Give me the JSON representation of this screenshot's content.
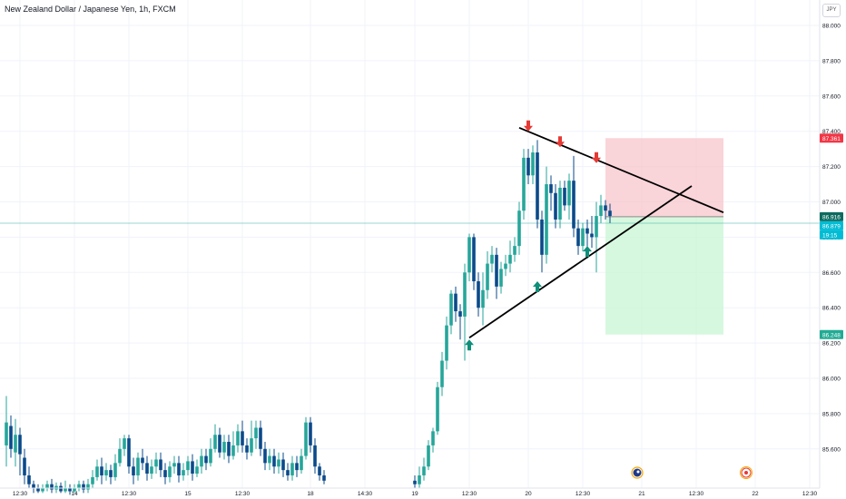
{
  "header": {
    "title": "New Zealand Dollar / Japanese Yen, 1h, FXCM",
    "currency_button": "JPY"
  },
  "colors": {
    "up": "#26a69a",
    "down": "#0b4a8a",
    "grid": "#f0f3fa",
    "current_line": "#26a69a",
    "stop_zone": "#f7c5cb",
    "target_zone": "#c8f5d4",
    "stop_tag": "#f23645",
    "current_tag": "#0e6b5f",
    "bid_tag": "#00bcd4",
    "target_tag": "#22ab94",
    "arrow_down": "#e53935",
    "arrow_up": "#0e8f7a",
    "trendline": "#000000"
  },
  "chart_data": {
    "type": "candlestick",
    "title": "New Zealand Dollar / Japanese Yen, 1h, FXCM",
    "price_axis": {
      "ylim": [
        85.4,
        88.1
      ],
      "ticks": [
        88.0,
        87.8,
        87.6,
        87.4,
        87.2,
        87.0,
        86.8,
        86.6,
        86.4,
        86.2,
        86.0,
        85.8,
        85.6
      ],
      "tick_labels": [
        "88.000",
        "87.800",
        "87.600",
        "87.400",
        "87.200",
        "87.000",
        "86.800",
        "86.600",
        "86.400",
        "86.200",
        "86.000",
        "85.800",
        "85.600"
      ]
    },
    "time_axis": {
      "labels": [
        {
          "text": "12:30",
          "slot": 3
        },
        {
          "text": "14",
          "slot": 15
        },
        {
          "text": "12:30",
          "slot": 27
        },
        {
          "text": "15",
          "slot": 40
        },
        {
          "text": "12:30",
          "slot": 52
        },
        {
          "text": "18",
          "slot": 67
        },
        {
          "text": "14:30",
          "slot": 79
        },
        {
          "text": "19",
          "slot": 90
        },
        {
          "text": "12:30",
          "slot": 102
        },
        {
          "text": "20",
          "slot": 115
        },
        {
          "text": "12:30",
          "slot": 127
        },
        {
          "text": "21",
          "slot": 140
        },
        {
          "text": "12:30",
          "slot": 152
        },
        {
          "text": "22",
          "slot": 165
        },
        {
          "text": "12:30",
          "slot": 177
        }
      ]
    },
    "candles": [
      [
        85.62,
        85.75,
        85.9,
        85.5
      ],
      [
        85.73,
        85.6,
        85.79,
        85.55
      ],
      [
        85.58,
        85.68,
        85.77,
        85.5
      ],
      [
        85.68,
        85.57,
        85.72,
        85.45
      ],
      [
        85.55,
        85.45,
        85.6,
        85.4
      ],
      [
        85.45,
        85.4,
        85.5,
        85.38
      ],
      [
        85.4,
        85.38,
        85.42,
        85.35
      ],
      [
        85.38,
        85.36,
        85.4,
        85.35
      ],
      [
        85.36,
        85.38,
        85.4,
        85.35
      ],
      [
        85.38,
        85.4,
        85.42,
        85.36
      ],
      [
        85.4,
        85.37,
        85.43,
        85.35
      ],
      [
        85.37,
        85.39,
        85.41,
        85.35
      ],
      [
        85.39,
        85.36,
        85.41,
        85.35
      ],
      [
        85.36,
        85.38,
        85.42,
        85.35
      ],
      [
        85.38,
        85.36,
        85.4,
        85.34
      ],
      [
        85.36,
        85.38,
        85.4,
        85.35
      ],
      [
        85.38,
        85.4,
        85.42,
        85.36
      ],
      [
        85.4,
        85.37,
        85.42,
        85.35
      ],
      [
        85.37,
        85.4,
        85.43,
        85.35
      ],
      [
        85.4,
        85.44,
        85.48,
        85.38
      ],
      [
        85.44,
        85.5,
        85.54,
        85.42
      ],
      [
        85.5,
        85.45,
        85.55,
        85.4
      ],
      [
        85.45,
        85.48,
        85.52,
        85.42
      ],
      [
        85.48,
        85.44,
        85.51,
        85.4
      ],
      [
        85.44,
        85.52,
        85.57,
        85.42
      ],
      [
        85.52,
        85.6,
        85.66,
        85.5
      ],
      [
        85.6,
        85.66,
        85.68,
        85.56
      ],
      [
        85.66,
        85.5,
        85.68,
        85.46
      ],
      [
        85.5,
        85.45,
        85.55,
        85.4
      ],
      [
        85.45,
        85.55,
        85.58,
        85.42
      ],
      [
        85.55,
        85.52,
        85.6,
        85.48
      ],
      [
        85.52,
        85.46,
        85.56,
        85.42
      ],
      [
        85.46,
        85.5,
        85.54,
        85.43
      ],
      [
        85.5,
        85.54,
        85.58,
        85.46
      ],
      [
        85.54,
        85.48,
        85.58,
        85.44
      ],
      [
        85.48,
        85.44,
        85.52,
        85.4
      ],
      [
        85.44,
        85.5,
        85.53,
        85.41
      ],
      [
        85.5,
        85.52,
        85.56,
        85.46
      ],
      [
        85.52,
        85.45,
        85.56,
        85.41
      ],
      [
        85.45,
        85.48,
        85.52,
        85.42
      ],
      [
        85.48,
        85.53,
        85.56,
        85.45
      ],
      [
        85.53,
        85.46,
        85.57,
        85.42
      ],
      [
        85.46,
        85.5,
        85.54,
        85.44
      ],
      [
        85.5,
        85.56,
        85.6,
        85.46
      ],
      [
        85.56,
        85.52,
        85.6,
        85.48
      ],
      [
        85.52,
        85.6,
        85.66,
        85.5
      ],
      [
        85.6,
        85.68,
        85.74,
        85.58
      ],
      [
        85.68,
        85.58,
        85.72,
        85.55
      ],
      [
        85.58,
        85.64,
        85.68,
        85.54
      ],
      [
        85.64,
        85.56,
        85.68,
        85.52
      ],
      [
        85.56,
        85.62,
        85.7,
        85.54
      ],
      [
        85.62,
        85.7,
        85.74,
        85.58
      ],
      [
        85.7,
        85.62,
        85.76,
        85.58
      ],
      [
        85.62,
        85.58,
        85.66,
        85.54
      ],
      [
        85.58,
        85.66,
        85.76,
        85.56
      ],
      [
        85.66,
        85.72,
        85.76,
        85.6
      ],
      [
        85.72,
        85.6,
        85.76,
        85.56
      ],
      [
        85.6,
        85.52,
        85.64,
        85.48
      ],
      [
        85.52,
        85.56,
        85.6,
        85.48
      ],
      [
        85.56,
        85.5,
        85.6,
        85.46
      ],
      [
        85.5,
        85.54,
        85.58,
        85.46
      ],
      [
        85.54,
        85.48,
        85.58,
        85.44
      ],
      [
        85.48,
        85.45,
        85.52,
        85.42
      ],
      [
        85.45,
        85.52,
        85.56,
        85.42
      ],
      [
        85.52,
        85.48,
        85.56,
        85.44
      ],
      [
        85.48,
        85.56,
        85.6,
        85.46
      ],
      [
        85.56,
        85.75,
        85.78,
        85.54
      ],
      [
        85.75,
        85.62,
        85.78,
        85.58
      ],
      [
        85.62,
        85.5,
        85.66,
        85.46
      ],
      [
        85.5,
        85.45,
        85.52,
        85.42
      ],
      [
        85.45,
        85.42,
        85.48,
        85.4
      ],
      null,
      null,
      null,
      null,
      null,
      null,
      null,
      null,
      null,
      null,
      null,
      null,
      null,
      null,
      null,
      null,
      null,
      null,
      null,
      [
        85.42,
        85.4,
        85.45,
        85.38
      ],
      [
        85.4,
        85.45,
        85.5,
        85.38
      ],
      [
        85.45,
        85.5,
        85.55,
        85.42
      ],
      [
        85.5,
        85.62,
        85.65,
        85.48
      ],
      [
        85.62,
        85.7,
        85.72,
        85.58
      ],
      [
        85.7,
        85.95,
        85.98,
        85.68
      ],
      [
        85.95,
        86.1,
        86.15,
        85.9
      ],
      [
        86.1,
        86.3,
        86.35,
        86.05
      ],
      [
        86.3,
        86.48,
        86.5,
        86.25
      ],
      [
        86.48,
        86.38,
        86.52,
        86.32
      ],
      [
        86.38,
        86.35,
        86.42,
        86.22
      ],
      [
        86.35,
        86.6,
        86.65,
        86.1
      ],
      [
        86.6,
        86.8,
        86.82,
        86.55
      ],
      [
        86.8,
        86.55,
        86.82,
        86.5
      ],
      [
        86.55,
        86.4,
        86.6,
        86.35
      ],
      [
        86.4,
        86.5,
        86.6,
        86.3
      ],
      [
        86.5,
        86.65,
        86.72,
        86.45
      ],
      [
        86.65,
        86.7,
        86.75,
        86.6
      ],
      [
        86.7,
        86.52,
        86.74,
        86.45
      ],
      [
        86.52,
        86.62,
        86.66,
        86.48
      ],
      [
        86.62,
        86.65,
        86.7,
        86.58
      ],
      [
        86.65,
        86.7,
        86.78,
        86.6
      ],
      [
        86.7,
        86.75,
        86.8,
        86.66
      ],
      [
        86.75,
        86.95,
        87.0,
        86.7
      ],
      [
        86.95,
        87.25,
        87.3,
        86.9
      ],
      [
        87.25,
        87.15,
        87.3,
        87.1
      ],
      [
        87.15,
        87.28,
        87.32,
        87.1
      ],
      [
        87.28,
        86.9,
        87.35,
        86.85
      ],
      [
        86.9,
        86.7,
        86.95,
        86.6
      ],
      [
        86.7,
        87.1,
        87.2,
        86.65
      ],
      [
        87.1,
        87.05,
        87.15,
        86.95
      ],
      [
        87.05,
        86.9,
        87.1,
        86.85
      ],
      [
        86.9,
        87.08,
        87.12,
        86.85
      ],
      [
        87.08,
        86.98,
        87.12,
        86.95
      ],
      [
        86.98,
        87.12,
        87.16,
        86.9
      ],
      [
        87.12,
        86.85,
        87.26,
        86.8
      ],
      [
        86.85,
        86.75,
        86.9,
        86.7
      ],
      [
        86.75,
        86.85,
        86.88,
        86.72
      ],
      [
        86.85,
        86.82,
        86.9,
        86.68
      ],
      [
        86.82,
        86.8,
        86.92,
        86.74
      ],
      [
        86.8,
        86.92,
        87.0,
        86.6
      ],
      [
        86.92,
        86.98,
        87.04,
        86.88
      ],
      [
        86.98,
        86.95,
        87.01,
        86.9
      ],
      [
        86.95,
        86.92,
        86.99,
        86.88
      ]
    ],
    "trendlines": [
      {
        "name": "descending-resistance",
        "from": {
          "slot": 113,
          "price": 87.42
        },
        "to": {
          "slot": 158,
          "price": 86.94
        }
      },
      {
        "name": "ascending-support",
        "from": {
          "slot": 102,
          "price": 86.23
        },
        "to": {
          "slot": 151,
          "price": 87.09
        }
      }
    ],
    "arrows": [
      {
        "dir": "down",
        "slot": 115,
        "price": 87.4
      },
      {
        "dir": "down",
        "slot": 122,
        "price": 87.31
      },
      {
        "dir": "down",
        "slot": 130,
        "price": 87.22
      },
      {
        "dir": "up",
        "slot": 102,
        "price": 86.22
      },
      {
        "dir": "up",
        "slot": 117,
        "price": 86.55
      },
      {
        "dir": "up",
        "slot": 128,
        "price": 86.75
      }
    ],
    "position": {
      "type": "short",
      "entry": 86.916,
      "stop": 87.361,
      "target": 86.248,
      "from_slot": 132,
      "to_slot": 158
    },
    "price_tags": [
      {
        "kind": "stop",
        "text": "87.361",
        "price": 87.361
      },
      {
        "kind": "current",
        "text": "86.916",
        "price": 86.916
      },
      {
        "kind": "bid",
        "text": "86.879",
        "price": 86.879
      },
      {
        "kind": "countdown",
        "text": "19:15"
      },
      {
        "kind": "target",
        "text": "86.248",
        "price": 86.248
      }
    ],
    "current_price": 86.879
  },
  "events": [
    {
      "kind": "flag",
      "slot": 139
    },
    {
      "kind": "target-marker",
      "slot": 163
    }
  ]
}
